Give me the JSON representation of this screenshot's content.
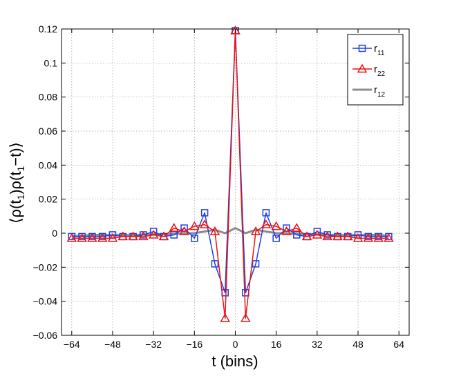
{
  "chart_data": {
    "type": "line",
    "xlabel": "t (bins)",
    "ylabel_parts": {
      "a": "⟨ρ(t",
      "sub_a": "1",
      "b": ")ρ(t",
      "sub_b": "1",
      "c": "−t)⟩"
    },
    "xlim": [
      -68,
      68
    ],
    "ylim": [
      -0.06,
      0.12
    ],
    "x_ticks": [
      -64,
      -48,
      -32,
      -16,
      0,
      16,
      32,
      48,
      64
    ],
    "y_ticks": [
      -0.06,
      -0.04,
      -0.02,
      0,
      0.02,
      0.04,
      0.06,
      0.08,
      0.1,
      0.12
    ],
    "x_tick_labels": [
      "−64",
      "−48",
      "−32",
      "−16",
      "0",
      "16",
      "32",
      "48",
      "64"
    ],
    "y_tick_labels": [
      "−0.06",
      "−0.04",
      "−0.02",
      "0",
      "0.02",
      "0.04",
      "0.06",
      "0.08",
      "0.1",
      "0.12"
    ],
    "grid": true,
    "legend_position": "top-right",
    "series": [
      {
        "name": "r",
        "name_sub": "11",
        "color": "#1f3fe0",
        "marker": "square",
        "x": [
          -64,
          -60,
          -56,
          -52,
          -48,
          -44,
          -40,
          -36,
          -32,
          -28,
          -24,
          -20,
          -16,
          -12,
          -8,
          -4,
          0,
          4,
          8,
          12,
          16,
          20,
          24,
          28,
          32,
          36,
          40,
          44,
          48,
          52,
          56,
          60
        ],
        "y": [
          -0.002,
          -0.002,
          -0.002,
          -0.002,
          -0.001,
          -0.002,
          -0.002,
          -0.001,
          0.001,
          -0.002,
          -0.001,
          0.003,
          -0.003,
          0.012,
          -0.018,
          -0.035,
          0.119,
          -0.035,
          -0.018,
          0.012,
          -0.003,
          0.003,
          -0.001,
          -0.002,
          0.001,
          -0.001,
          -0.002,
          -0.002,
          -0.001,
          -0.002,
          -0.002,
          -0.002
        ]
      },
      {
        "name": "r",
        "name_sub": "22",
        "color": "#ee1111",
        "marker": "triangle",
        "x": [
          -64,
          -60,
          -56,
          -52,
          -48,
          -44,
          -40,
          -36,
          -32,
          -28,
          -24,
          -20,
          -16,
          -12,
          -8,
          -4,
          0,
          4,
          8,
          12,
          16,
          20,
          24,
          28,
          32,
          36,
          40,
          44,
          48,
          52,
          56,
          60
        ],
        "y": [
          -0.003,
          -0.003,
          -0.003,
          -0.003,
          -0.003,
          -0.002,
          -0.002,
          -0.002,
          -0.001,
          -0.002,
          0.003,
          0.001,
          0.004,
          0.005,
          0.001,
          -0.05,
          0.119,
          -0.05,
          0.001,
          0.005,
          0.004,
          0.001,
          0.003,
          -0.002,
          -0.001,
          -0.002,
          -0.002,
          -0.002,
          -0.003,
          -0.003,
          -0.003,
          -0.003
        ]
      },
      {
        "name": "r",
        "name_sub": "12",
        "color": "#8c8c8c",
        "marker": "none",
        "x": [
          -64,
          -60,
          -56,
          -52,
          -48,
          -44,
          -40,
          -36,
          -32,
          -28,
          -24,
          -20,
          -16,
          -12,
          -8,
          -4,
          0,
          4,
          8,
          12,
          16,
          20,
          24,
          28,
          32,
          36,
          40,
          44,
          48,
          52,
          56,
          60
        ],
        "y": [
          -0.0015,
          -0.0015,
          -0.001,
          -0.001,
          -0.0012,
          -0.001,
          -0.0012,
          -0.0008,
          -0.0008,
          -0.0005,
          -0.0005,
          0,
          0,
          0.001,
          0.002,
          0,
          0.003,
          0,
          0.002,
          0.001,
          0,
          0,
          -0.0005,
          -0.0005,
          -0.0008,
          -0.0008,
          -0.0012,
          -0.001,
          -0.0012,
          -0.001,
          -0.001,
          -0.0015
        ]
      }
    ]
  }
}
